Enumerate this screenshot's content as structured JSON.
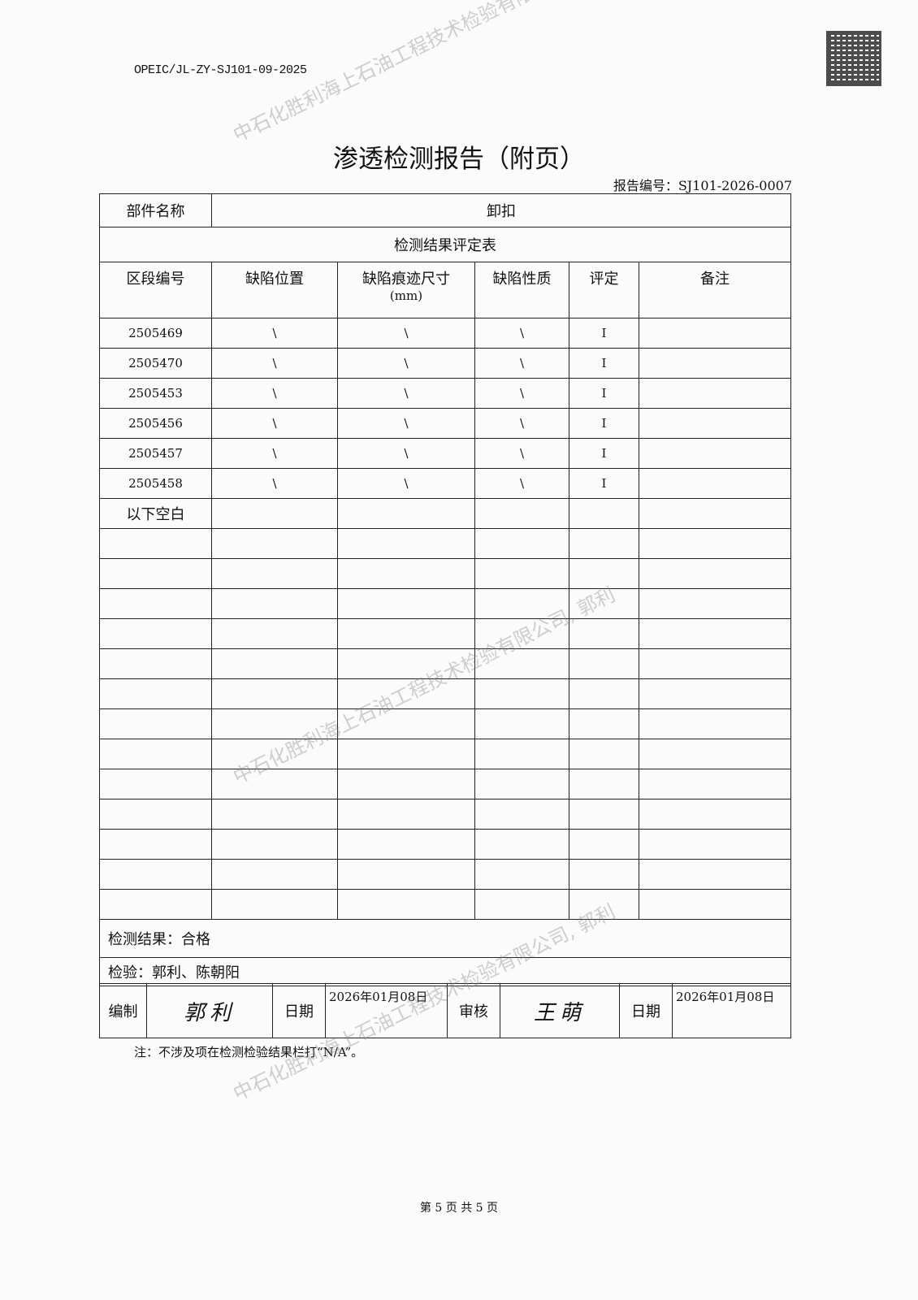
{
  "doc_code": "OPEIC/JL-ZY-SJ101-09-2025",
  "title": "渗透检测报告（附页）",
  "report_no": "报告编号：SJ101-2026-0007",
  "part_label": "部件名称",
  "part_value": "卸扣",
  "table_title": "检测结果评定表",
  "columns": [
    "区段编号",
    "缺陷位置",
    "缺陷痕迹尺寸",
    "缺陷性质",
    "评定",
    "备注"
  ],
  "columns_unit": "(mm)",
  "rows": [
    [
      "2505469",
      "\\",
      "\\",
      "\\",
      "I",
      ""
    ],
    [
      "2505470",
      "\\",
      "\\",
      "\\",
      "I",
      ""
    ],
    [
      "2505453",
      "\\",
      "\\",
      "\\",
      "I",
      ""
    ],
    [
      "2505456",
      "\\",
      "\\",
      "\\",
      "I",
      ""
    ],
    [
      "2505457",
      "\\",
      "\\",
      "\\",
      "I",
      ""
    ],
    [
      "2505458",
      "\\",
      "\\",
      "\\",
      "I",
      ""
    ]
  ],
  "blank_marker": "以下空白",
  "result": "检测结果：合格",
  "inspectors": "检验：郭利、陈朝阳",
  "sign": {
    "prepared_label": "编制",
    "prepared_sig": "郭利",
    "date_label": "日期",
    "prepared_date": "2026年01月08日",
    "review_label": "审核",
    "review_sig": "王萌",
    "review_date_label": "日期",
    "review_date": "2026年01月08日"
  },
  "note": "注：不涉及项在检测检验结果栏打“N/A”。",
  "footer": "第 5 页 共 5 页",
  "watermark": "中石化胜利海上石油工程技术检验有限公司, 郭利"
}
